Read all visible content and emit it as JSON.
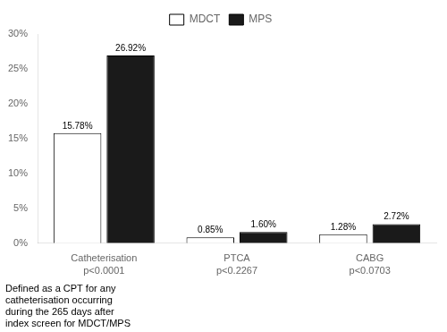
{
  "chart_data": {
    "type": "bar",
    "categories": [
      "Catheterisation",
      "PTCA",
      "CABG"
    ],
    "series": [
      {
        "name": "MDCT",
        "color": "#ffffff",
        "values": [
          15.78,
          0.85,
          1.28
        ],
        "value_labels": [
          "15.78%",
          "0.85%",
          "1.28%"
        ]
      },
      {
        "name": "MPS",
        "color": "#1a1a1a",
        "values": [
          26.92,
          1.6,
          2.72
        ],
        "value_labels": [
          "26.92%",
          "1.60%",
          "2.72%"
        ]
      }
    ],
    "annotations": [
      "p<0.0001",
      "p<0.2267",
      "p<0.0703"
    ],
    "footnote": [
      "Defined as a CPT for any",
      "catheterisation occurring",
      "during the 265 days after",
      "index screen for MDCT/MPS"
    ],
    "ylim": [
      0,
      30
    ],
    "yticks": [
      {
        "value": 0,
        "label": "0%"
      },
      {
        "value": 5,
        "label": "5%"
      },
      {
        "value": 10,
        "label": "10%"
      },
      {
        "value": 15,
        "label": "15%"
      },
      {
        "value": 20,
        "label": "20%"
      },
      {
        "value": 25,
        "label": "25%"
      },
      {
        "value": 30,
        "label": "30%"
      }
    ],
    "legend": "top",
    "grid": false,
    "data_labels": true
  }
}
